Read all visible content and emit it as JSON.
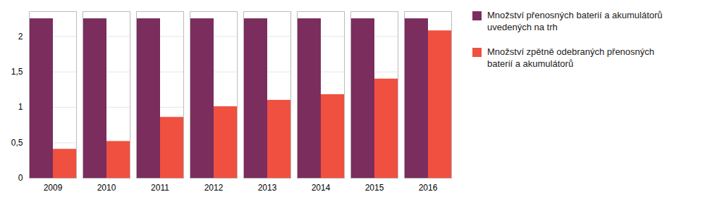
{
  "chart_data": {
    "type": "bar",
    "categories": [
      "2009",
      "2010",
      "2011",
      "2012",
      "2013",
      "2014",
      "2015",
      "2016"
    ],
    "series": [
      {
        "name": "Množství přenosných baterií a akumulátorů\nuvedených na trh",
        "color": "#7B2D5E",
        "values": [
          2.25,
          2.25,
          2.25,
          2.25,
          2.25,
          2.25,
          2.25,
          2.25
        ]
      },
      {
        "name": "Množství zpětně odebraných přenosných\nbaterií a akumulátorů",
        "color": "#F05040",
        "values": [
          0.41,
          0.52,
          0.86,
          1.01,
          1.1,
          1.18,
          1.4,
          2.08
        ]
      }
    ],
    "ylim": [
      0,
      2.35
    ],
    "yticks": [
      0,
      {
        "value": 0.5,
        "label": "0,5"
      },
      1,
      {
        "value": 1.5,
        "label": "1,5"
      },
      2
    ],
    "grid": true,
    "legend": "right"
  }
}
